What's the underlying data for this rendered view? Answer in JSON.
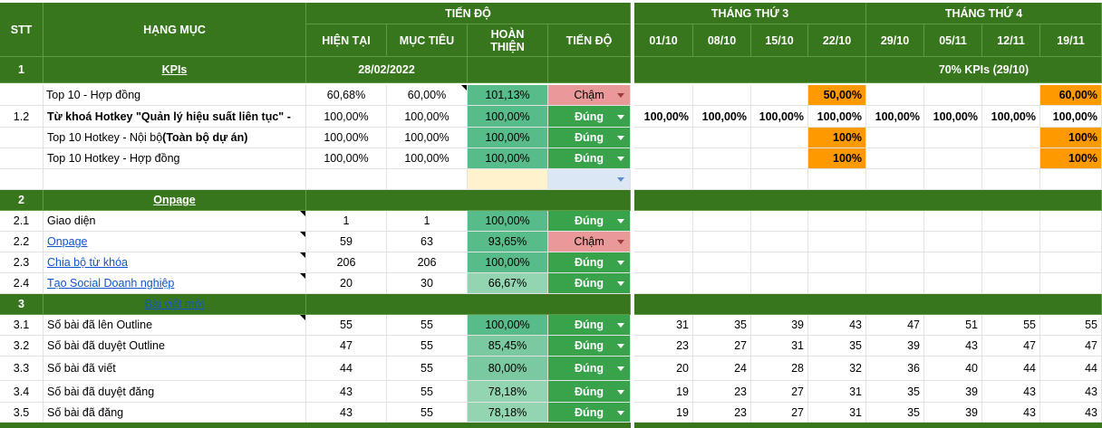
{
  "header": {
    "tien_do": "TIẾN ĐỘ",
    "thang3": "THÁNG THỨ 3",
    "thang4": "THÁNG THỨ 4",
    "stt": "STT",
    "hang_muc": "HẠNG MỤC",
    "hien_tai": "HIỆN TẠI",
    "muc_tieu": "MỤC TIÊU",
    "hoan_thien": "HOÀN THIỆN",
    "tien_do_col": "TIẾN ĐỘ",
    "weeks": [
      "01/10",
      "08/10",
      "15/10",
      "22/10",
      "29/10",
      "05/11",
      "12/11",
      "19/11"
    ]
  },
  "section1": {
    "stt": "1",
    "title": "KPIs",
    "date": "28/02/2022",
    "note": "70% KPIs (29/10)"
  },
  "section2": {
    "stt": "2",
    "title": "Onpage"
  },
  "section3": {
    "stt": "3",
    "title": "Bài viết mới"
  },
  "rows": {
    "r1": {
      "stt": "",
      "name": "Top 10 - Hợp đồng",
      "cur": "60,68%",
      "target": "60,00%",
      "done": "101,13%",
      "status": "Chậm",
      "weeks": [
        "",
        "",
        "",
        "50,00%",
        "",
        "",
        "",
        "60,00%"
      ]
    },
    "r2": {
      "stt": "1.2",
      "name": "Từ khoá Hotkey \"Quản lý hiệu suất liên tục\" -",
      "cur": "100,00%",
      "target": "100,00%",
      "done": "100,00%",
      "status": "Đúng",
      "weeks": [
        "100,00%",
        "100,00%",
        "100,00%",
        "100,00%",
        "100,00%",
        "100,00%",
        "100,00%",
        "100,00%"
      ]
    },
    "r3": {
      "stt": "",
      "name": "Top 10 Hotkey - Nội bộ ",
      "name_bold": "(Toàn bộ dự án)",
      "cur": "100,00%",
      "target": "100,00%",
      "done": "100,00%",
      "status": "Đúng",
      "weeks": [
        "",
        "",
        "",
        "100%",
        "",
        "",
        "",
        "100%"
      ]
    },
    "r4": {
      "stt": "",
      "name": "Top 10 Hotkey - Hợp đồng",
      "cur": "100,00%",
      "target": "100,00%",
      "done": "100,00%",
      "status": "Đúng",
      "weeks": [
        "",
        "",
        "",
        "100%",
        "",
        "",
        "",
        "100%"
      ]
    },
    "r21": {
      "stt": "2.1",
      "name": "Giao diện",
      "cur": "1",
      "target": "1",
      "done": "100,00%",
      "status": "Đúng"
    },
    "r22": {
      "stt": "2.2",
      "name": "Onpage",
      "cur": "59",
      "target": "63",
      "done": "93,65%",
      "status": "Chậm"
    },
    "r23": {
      "stt": "2.3",
      "name": "Chia bộ từ khóa",
      "cur": "206",
      "target": "206",
      "done": "100,00%",
      "status": "Đúng"
    },
    "r24": {
      "stt": "2.4",
      "name": "Tạo Social Doanh nghiệp",
      "cur": "20",
      "target": "30",
      "done": "66,67%",
      "status": "Đúng"
    },
    "r31": {
      "stt": "3.1",
      "name": "Số bài đã lên Outline",
      "cur": "55",
      "target": "55",
      "done": "100,00%",
      "status": "Đúng",
      "weeks": [
        "31",
        "35",
        "39",
        "43",
        "47",
        "51",
        "55",
        "55"
      ]
    },
    "r32": {
      "stt": "3.2",
      "name": "Số bài đã duyệt Outline",
      "cur": "47",
      "target": "55",
      "done": "85,45%",
      "status": "Đúng",
      "weeks": [
        "23",
        "27",
        "31",
        "35",
        "39",
        "43",
        "47",
        "47"
      ]
    },
    "r33": {
      "stt": "3.3",
      "name": "Số bài đã viết",
      "cur": "44",
      "target": "55",
      "done": "80,00%",
      "status": "Đúng",
      "weeks": [
        "20",
        "24",
        "28",
        "32",
        "36",
        "40",
        "44",
        "44"
      ]
    },
    "r34": {
      "stt": "3.4",
      "name": "Số bài đã duyệt đăng",
      "cur": "43",
      "target": "55",
      "done": "78,18%",
      "status": "Đúng",
      "weeks": [
        "19",
        "23",
        "27",
        "31",
        "35",
        "39",
        "43",
        "43"
      ]
    },
    "r35": {
      "stt": "3.5",
      "name": "Số bài đã đăng",
      "cur": "43",
      "target": "55",
      "done": "78,18%",
      "status": "Đúng",
      "weeks": [
        "19",
        "23",
        "27",
        "31",
        "35",
        "39",
        "43",
        "43"
      ]
    }
  },
  "colors": {
    "header_green": "#38761d",
    "ok_green": "#38a34b",
    "late_red": "#ea9999",
    "highlight_orange": "#ff9900"
  }
}
